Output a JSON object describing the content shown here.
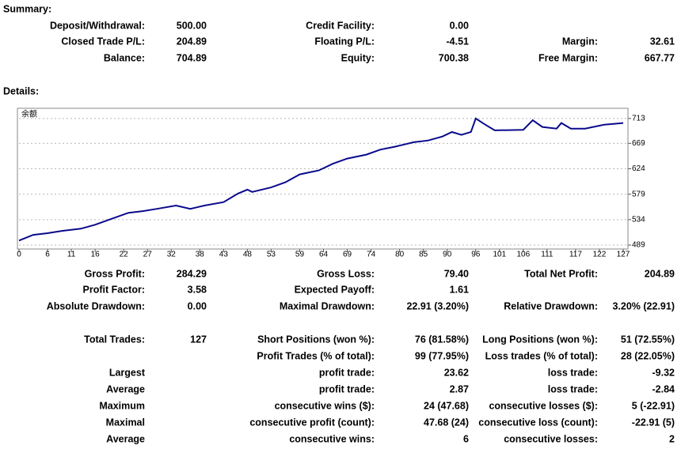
{
  "summary": {
    "title": "Summary:",
    "rows": [
      [
        [
          "Deposit/Withdrawal:",
          "500.00"
        ],
        [
          "Credit Facility:",
          "0.00"
        ]
      ],
      [
        [
          "Closed Trade P/L:",
          "204.89"
        ],
        [
          "Floating P/L:",
          "-4.51"
        ],
        [
          "Margin:",
          "32.61"
        ]
      ],
      [
        [
          "Balance:",
          "704.89"
        ],
        [
          "Equity:",
          "700.38"
        ],
        [
          "Free Margin:",
          "667.77"
        ]
      ]
    ]
  },
  "details": {
    "title": "Details:",
    "chart_data": {
      "type": "line",
      "label": "余额",
      "color": "#0a0a8c",
      "grid": true,
      "x": [
        0,
        3,
        6,
        9,
        13,
        16,
        19,
        23,
        26,
        29,
        33,
        36,
        39,
        43,
        46,
        48,
        49,
        53,
        56,
        59,
        63,
        66,
        69,
        73,
        76,
        79,
        83,
        86,
        89,
        91,
        93,
        95,
        96,
        98,
        100,
        106,
        108,
        110,
        113,
        114,
        116,
        119,
        123,
        127
      ],
      "values": [
        497,
        507,
        510,
        514,
        518,
        525,
        534,
        546,
        549,
        553,
        559,
        553,
        559,
        565,
        580,
        587,
        583,
        591,
        600,
        614,
        621,
        633,
        642,
        649,
        658,
        663,
        671,
        674,
        681,
        689,
        684,
        689,
        713,
        702,
        692,
        693,
        710,
        698,
        695,
        705,
        695,
        695,
        702,
        705
      ],
      "xlim": [
        0,
        128
      ],
      "xticks": [
        0,
        6,
        11,
        16,
        22,
        27,
        32,
        38,
        43,
        48,
        53,
        59,
        64,
        69,
        74,
        80,
        85,
        90,
        96,
        101,
        106,
        111,
        117,
        122,
        127
      ],
      "ylim": [
        482,
        731
      ],
      "yticks": [
        489,
        534,
        579,
        624,
        669,
        713
      ]
    },
    "rows": [
      [
        [
          "Gross Profit:",
          "284.29"
        ],
        [
          "Gross Loss:",
          "79.40"
        ],
        [
          "Total Net Profit:",
          "204.89"
        ]
      ],
      [
        [
          "Profit Factor:",
          "3.58"
        ],
        [
          "Expected Payoff:",
          "1.61"
        ]
      ],
      [
        [
          "Absolute Drawdown:",
          "0.00"
        ],
        [
          "Maximal Drawdown:",
          "22.91 (3.20%)"
        ],
        [
          "Relative Drawdown:",
          "3.20% (22.91)"
        ]
      ],
      [
        [
          "Total Trades:",
          "127"
        ],
        [
          "Short Positions (won %):",
          "76 (81.58%)"
        ],
        [
          "Long Positions (won %):",
          "51 (72.55%)"
        ]
      ],
      [
        null,
        [
          "Profit Trades (% of total):",
          "99 (77.95%)"
        ],
        [
          "Loss trades (% of total):",
          "28 (22.05%)"
        ]
      ],
      [
        [
          "Largest"
        ],
        [
          "profit trade:",
          "23.62"
        ],
        [
          "loss trade:",
          "-9.32"
        ]
      ],
      [
        [
          "Average"
        ],
        [
          "profit trade:",
          "2.87"
        ],
        [
          "loss trade:",
          "-2.84"
        ]
      ],
      [
        [
          "Maximum"
        ],
        [
          "consecutive wins ($):",
          "24 (47.68)"
        ],
        [
          "consecutive losses ($):",
          "5 (-22.91)"
        ]
      ],
      [
        [
          "Maximal"
        ],
        [
          "consecutive profit (count):",
          "47.68 (24)"
        ],
        [
          "consecutive loss (count):",
          "-22.91 (5)"
        ]
      ],
      [
        [
          "Average"
        ],
        [
          "consecutive wins:",
          "6"
        ],
        [
          "consecutive losses:",
          "2"
        ]
      ]
    ]
  }
}
